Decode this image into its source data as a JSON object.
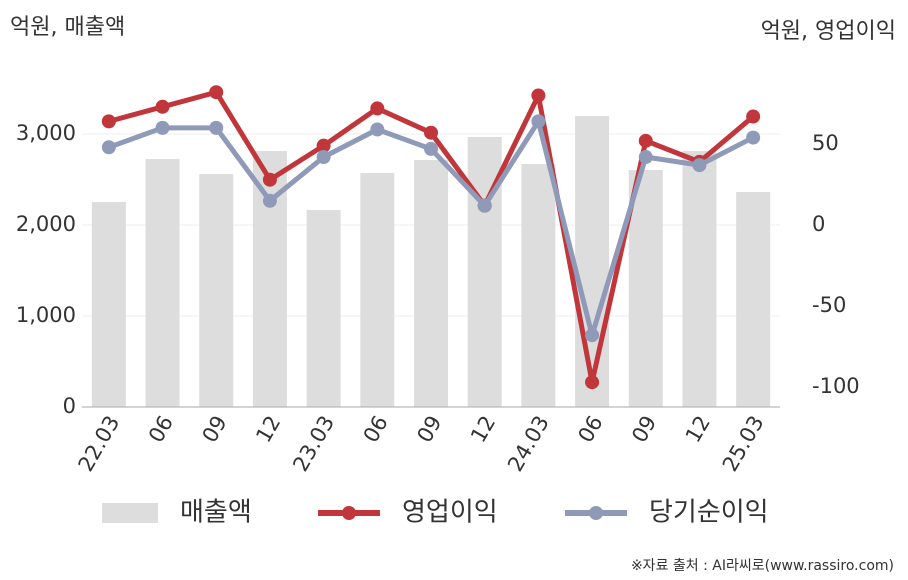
{
  "chart_data": {
    "type": "bar",
    "y_label": "억원, 매출액",
    "y2_label": "억원, 영업이익",
    "source": "※자료 출처 : AI라씨로(www.rassiro.com)",
    "categories": [
      "22.03",
      "06",
      "09",
      "12",
      "23.03",
      "06",
      "09",
      "12",
      "24.03",
      "06",
      "09",
      "12",
      "25.03"
    ],
    "series": [
      {
        "name": "매출액",
        "type": "bar",
        "color": "#dddddd",
        "values": [
          2253,
          2725,
          2560,
          2813,
          2165,
          2571,
          2714,
          2967,
          2670,
          3198,
          2604,
          2813,
          2363
        ]
      },
      {
        "name": "영업이익",
        "type": "line",
        "axis": "y2",
        "color": "#c0363a",
        "values": [
          64,
          73,
          82,
          28,
          49,
          72,
          57,
          12,
          80,
          -97,
          52,
          39,
          67
        ]
      },
      {
        "name": "당기순이익",
        "type": "line",
        "axis": "y2",
        "color": "#8e9ab8",
        "values": [
          48,
          60,
          60,
          15,
          42,
          59,
          47,
          12,
          64,
          -68,
          42,
          37,
          54
        ]
      }
    ],
    "ylim": [
      0,
      3500
    ],
    "yticks": [
      0,
      {
        "value": 1000,
        "label": "1,000"
      },
      {
        "value": 2000,
        "label": "2,000"
      },
      {
        "value": 3000,
        "label": "3,000"
      }
    ],
    "y2lim": [
      -112.3,
      84.3
    ],
    "y2ticks": [
      -100,
      -50,
      0,
      50
    ],
    "grid": true
  }
}
